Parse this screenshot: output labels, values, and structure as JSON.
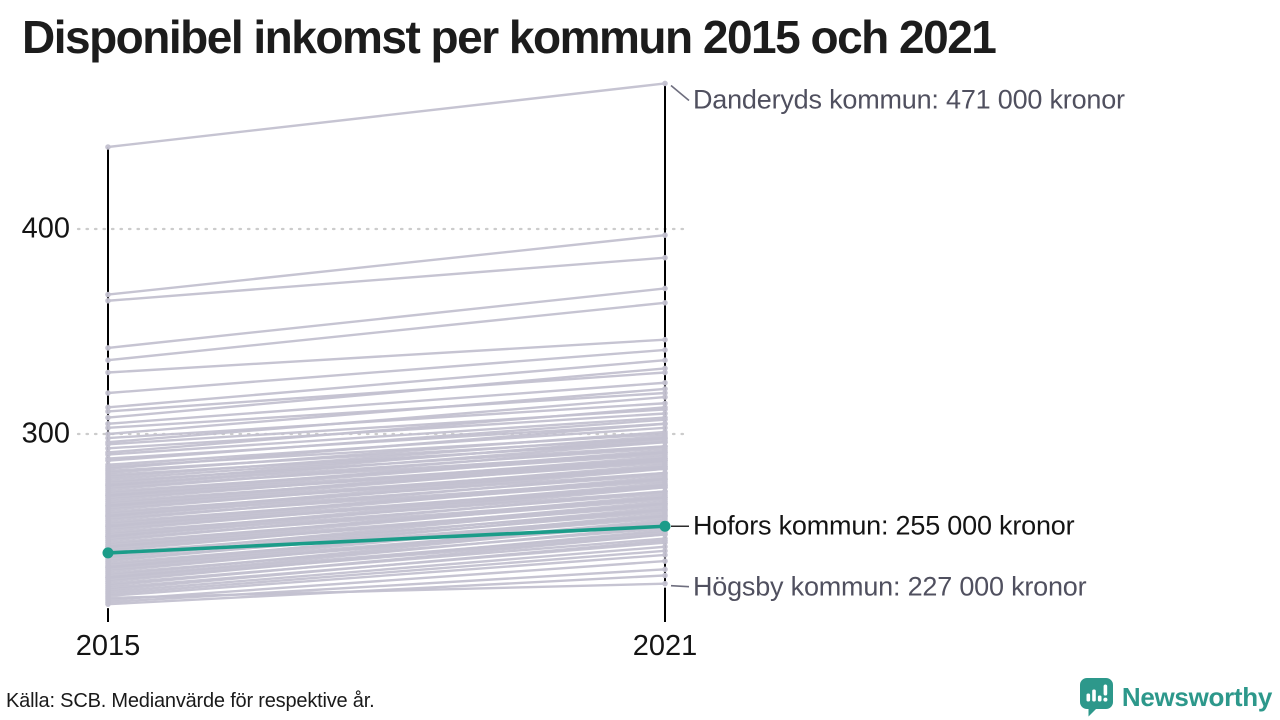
{
  "title": "Disponibel inkomst per kommun 2015 och 2021",
  "source_note": "Källa: SCB. Medianvärde för respektive år.",
  "branding": {
    "logo_text": "Newsworthy",
    "logo_icon": "newsworthy-barchart-exclamation-icon",
    "brand_color": "#2d988b"
  },
  "chart_data": {
    "type": "line",
    "subtype": "slope-chart",
    "title": "Disponibel inkomst per kommun 2015 och 2021",
    "x_categories": [
      "2015",
      "2021"
    ],
    "y_ticks": [
      400,
      300
    ],
    "y_unit": "tusen kronor",
    "ylim": [
      210,
      480
    ],
    "grid": "dotted-horizontal",
    "line_color": "#c3c1d0",
    "axis_color": "#000000",
    "highlight_color": "#1b9c89",
    "highlight": {
      "name": "Hofors kommun",
      "values": [
        242,
        255
      ]
    },
    "annotations": [
      {
        "label": "Danderyds kommun: 471 000 kronor",
        "value_2021": 471,
        "emphasis": "muted",
        "label_dy": 17
      },
      {
        "label": "Hofors kommun: 255 000 kronor",
        "value_2021": 255,
        "emphasis": "strong",
        "label_dy": 0
      },
      {
        "label": "Högsby kommun: 227 000 kronor",
        "value_2021": 227,
        "emphasis": "muted",
        "label_dy": 3
      }
    ],
    "lines": [
      [
        440,
        471
      ],
      [
        368,
        397
      ],
      [
        365,
        386
      ],
      [
        342,
        371
      ],
      [
        336,
        364
      ],
      [
        330,
        346
      ],
      [
        320,
        341
      ],
      [
        313,
        336
      ],
      [
        311,
        330
      ],
      [
        308,
        332
      ],
      [
        305,
        325
      ],
      [
        303,
        320
      ],
      [
        300,
        322
      ],
      [
        298,
        315
      ],
      [
        296,
        318
      ],
      [
        295,
        312
      ],
      [
        293,
        310
      ],
      [
        291,
        313
      ],
      [
        290,
        308
      ],
      [
        288,
        305
      ],
      [
        287,
        307
      ],
      [
        285,
        303
      ],
      [
        284,
        300
      ],
      [
        283,
        305
      ],
      [
        282,
        298
      ],
      [
        281,
        301
      ],
      [
        280,
        296
      ],
      [
        279,
        299
      ],
      [
        278,
        297
      ],
      [
        277,
        294
      ],
      [
        276,
        298
      ],
      [
        275,
        293
      ],
      [
        275,
        296
      ],
      [
        274,
        291
      ],
      [
        273,
        294
      ],
      [
        272,
        290
      ],
      [
        271,
        292
      ],
      [
        270,
        288
      ],
      [
        270,
        291
      ],
      [
        269,
        287
      ],
      [
        268,
        289
      ],
      [
        267,
        286
      ],
      [
        266,
        288
      ],
      [
        265,
        284
      ],
      [
        265,
        287
      ],
      [
        264,
        283
      ],
      [
        263,
        285
      ],
      [
        262,
        281
      ],
      [
        261,
        284
      ],
      [
        260,
        280
      ],
      [
        260,
        283
      ],
      [
        259,
        278
      ],
      [
        258,
        281
      ],
      [
        257,
        277
      ],
      [
        256,
        279
      ],
      [
        255,
        275
      ],
      [
        255,
        278
      ],
      [
        254,
        274
      ],
      [
        253,
        276
      ],
      [
        252,
        272
      ],
      [
        251,
        275
      ],
      [
        250,
        271
      ],
      [
        250,
        274
      ],
      [
        249,
        269
      ],
      [
        248,
        272
      ],
      [
        247,
        268
      ],
      [
        246,
        270
      ],
      [
        245,
        266
      ],
      [
        245,
        269
      ],
      [
        244,
        265
      ],
      [
        243,
        267
      ],
      [
        242,
        263
      ],
      [
        241,
        266
      ],
      [
        240,
        262
      ],
      [
        240,
        264
      ],
      [
        239,
        260
      ],
      [
        238,
        263
      ],
      [
        237,
        259
      ],
      [
        236,
        261
      ],
      [
        235,
        257
      ],
      [
        235,
        260
      ],
      [
        234,
        256
      ],
      [
        233,
        258
      ],
      [
        232,
        254
      ],
      [
        231,
        257
      ],
      [
        230,
        252
      ],
      [
        230,
        255
      ],
      [
        229,
        251
      ],
      [
        228,
        253
      ],
      [
        227,
        249
      ],
      [
        226,
        251
      ],
      [
        225,
        247
      ],
      [
        224,
        248
      ],
      [
        223,
        245
      ],
      [
        222,
        243
      ],
      [
        221,
        241
      ],
      [
        220,
        227
      ],
      [
        219,
        238
      ],
      [
        218,
        234
      ],
      [
        217,
        231
      ]
    ]
  }
}
